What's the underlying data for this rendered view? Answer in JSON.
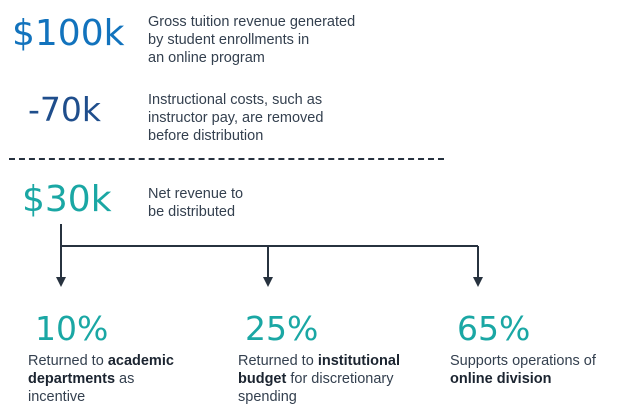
{
  "gross": {
    "amount": "$100k",
    "lines": [
      "Gross tuition revenue generated",
      "by student enrollments in",
      "an online program"
    ]
  },
  "costs": {
    "amount": "-70k",
    "lines": [
      "Instructional costs, such as",
      "instructor pay, are removed",
      "before distribution"
    ]
  },
  "net": {
    "amount": "$30k",
    "lines": [
      "Net revenue to",
      "be distributed"
    ]
  },
  "allocations": [
    {
      "percent": "10%",
      "line1_pre": "Returned to ",
      "line1_bold": "academic",
      "line2_bold": "departments",
      "line2_post": " as",
      "line3": "incentive"
    },
    {
      "percent": "25%",
      "line1_pre": "Returned to ",
      "line1_bold": "institutional",
      "line2_bold": "budget",
      "line2_post": " for discretionary",
      "line3": "spending"
    },
    {
      "percent": "65%",
      "line1_pre": "Supports operations of",
      "line2_bold": "online division"
    }
  ],
  "colors": {
    "gross_amount": "#1273bd",
    "costs_amount": "#1f4e8c",
    "net_amount": "#1aa7a4",
    "percent": "#1aa7a4",
    "lines": "#27323f"
  }
}
